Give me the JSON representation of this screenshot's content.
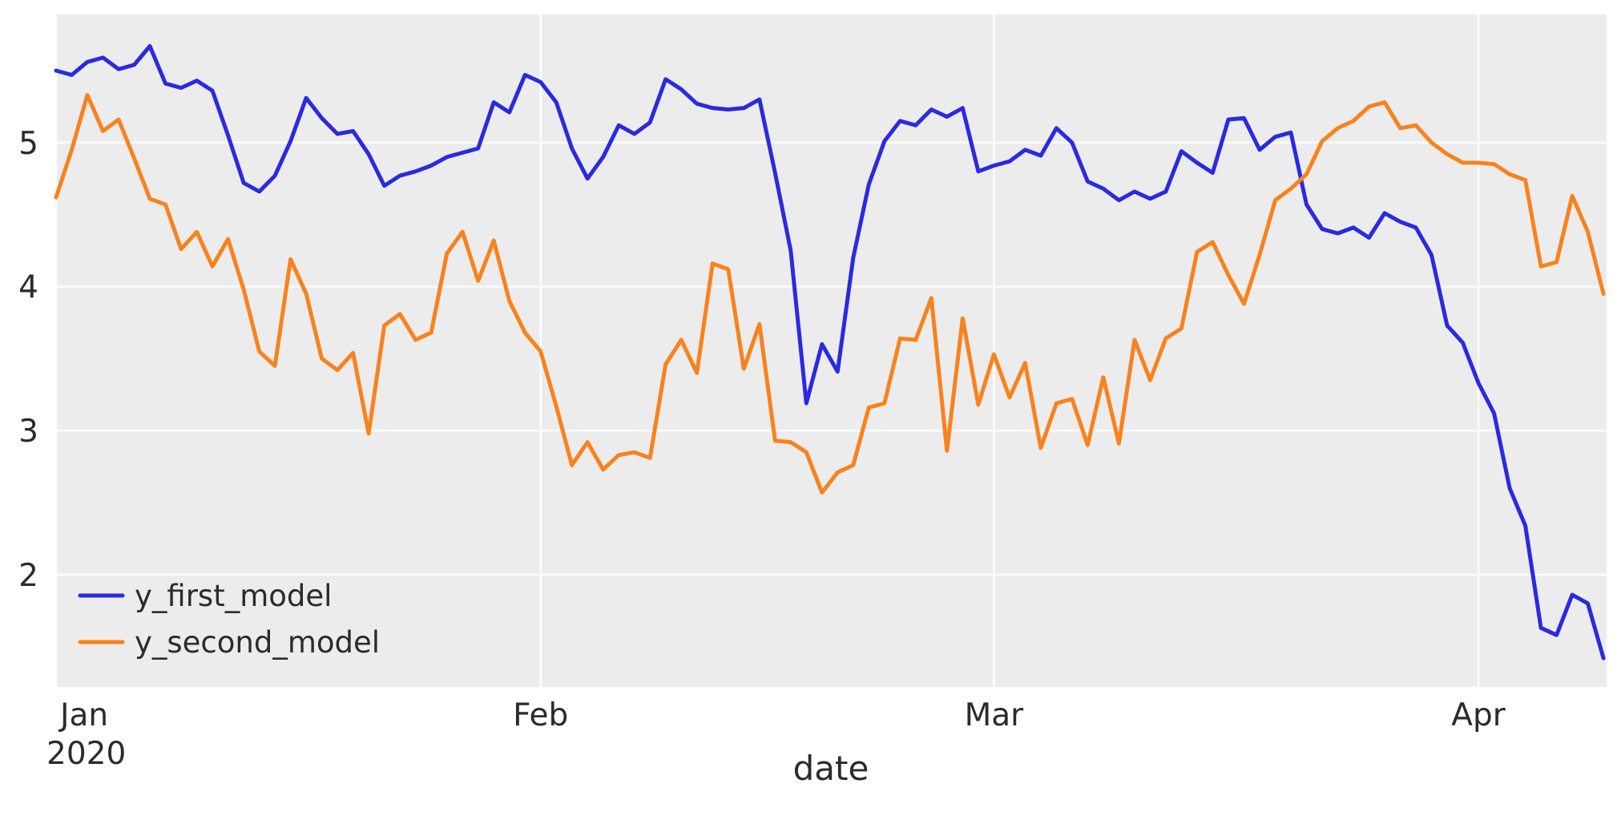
{
  "chart_data": {
    "type": "line",
    "title": "",
    "xlabel": "date",
    "ylabel": "",
    "grid": true,
    "plot_background": "#ececec",
    "grid_color": "#ffffff",
    "text_color": "#2b2b2b",
    "legend_position": "lower-left",
    "x_axis": {
      "unit": "day-of-year-2020",
      "start_date_label": "Jan",
      "start_year_label": "2020",
      "domain_days": [
        0,
        99.2
      ],
      "month_ticks": [
        {
          "label": "Jan",
          "day": 0,
          "sublabel": "2020"
        },
        {
          "label": "Feb",
          "day": 31,
          "sublabel": ""
        },
        {
          "label": "Mar",
          "day": 60,
          "sublabel": ""
        },
        {
          "label": "Apr",
          "day": 91,
          "sublabel": ""
        }
      ]
    },
    "y_axis": {
      "ticks": [
        2,
        3,
        4,
        5
      ],
      "ylim": [
        1.22,
        5.89
      ]
    },
    "series": [
      {
        "name": "y_first_model",
        "color": "#2a2ae0",
        "start_day": 0,
        "values": [
          5.5,
          5.47,
          5.56,
          5.59,
          5.51,
          5.54,
          5.67,
          5.41,
          5.38,
          5.43,
          5.36,
          5.05,
          4.72,
          4.66,
          4.77,
          5.01,
          5.31,
          5.17,
          5.06,
          5.08,
          4.92,
          4.7,
          4.77,
          4.8,
          4.84,
          4.9,
          4.93,
          4.96,
          5.28,
          5.21,
          5.47,
          5.42,
          5.28,
          4.96,
          4.75,
          4.9,
          5.12,
          5.06,
          5.14,
          5.44,
          5.37,
          5.27,
          5.24,
          5.23,
          5.24,
          5.3,
          4.79,
          4.25,
          3.19,
          3.6,
          3.41,
          4.2,
          4.71,
          5.01,
          5.15,
          5.12,
          5.23,
          5.18,
          5.24,
          4.8,
          4.84,
          4.87,
          4.95,
          4.91,
          5.1,
          5.0,
          4.73,
          4.68,
          4.6,
          4.66,
          4.61,
          4.66,
          4.94,
          4.86,
          4.79,
          5.16,
          5.17,
          4.95,
          5.04,
          5.07,
          4.57,
          4.4,
          4.37,
          4.41,
          4.34,
          4.51,
          4.45,
          4.41,
          4.22,
          3.73,
          3.61,
          3.33,
          3.12,
          2.6,
          2.34,
          1.63,
          1.58,
          1.86,
          1.8,
          1.42
        ]
      },
      {
        "name": "y_second_model",
        "color": "#f8821d",
        "start_day": 0,
        "values": [
          4.62,
          4.95,
          5.33,
          5.08,
          5.16,
          4.89,
          4.61,
          4.57,
          4.26,
          4.38,
          4.14,
          4.33,
          3.98,
          3.55,
          3.45,
          4.19,
          3.95,
          3.5,
          3.42,
          3.54,
          2.98,
          3.73,
          3.81,
          3.63,
          3.68,
          4.23,
          4.38,
          4.04,
          4.32,
          3.9,
          3.68,
          3.55,
          3.17,
          2.76,
          2.92,
          2.73,
          2.83,
          2.85,
          2.81,
          3.46,
          3.63,
          3.4,
          4.16,
          4.12,
          3.43,
          3.74,
          2.93,
          2.92,
          2.85,
          2.57,
          2.71,
          2.76,
          3.16,
          3.19,
          3.64,
          3.63,
          3.92,
          2.86,
          3.78,
          3.18,
          3.53,
          3.23,
          3.47,
          2.88,
          3.19,
          3.22,
          2.9,
          3.37,
          2.91,
          3.63,
          3.35,
          3.64,
          3.71,
          4.24,
          4.31,
          4.08,
          3.88,
          4.22,
          4.6,
          4.68,
          4.78,
          5.01,
          5.1,
          5.15,
          5.25,
          5.28,
          5.1,
          5.12,
          5.0,
          4.92,
          4.86,
          4.86,
          4.85,
          4.78,
          4.74,
          4.14,
          4.17,
          4.63,
          4.38,
          3.95
        ]
      }
    ]
  }
}
